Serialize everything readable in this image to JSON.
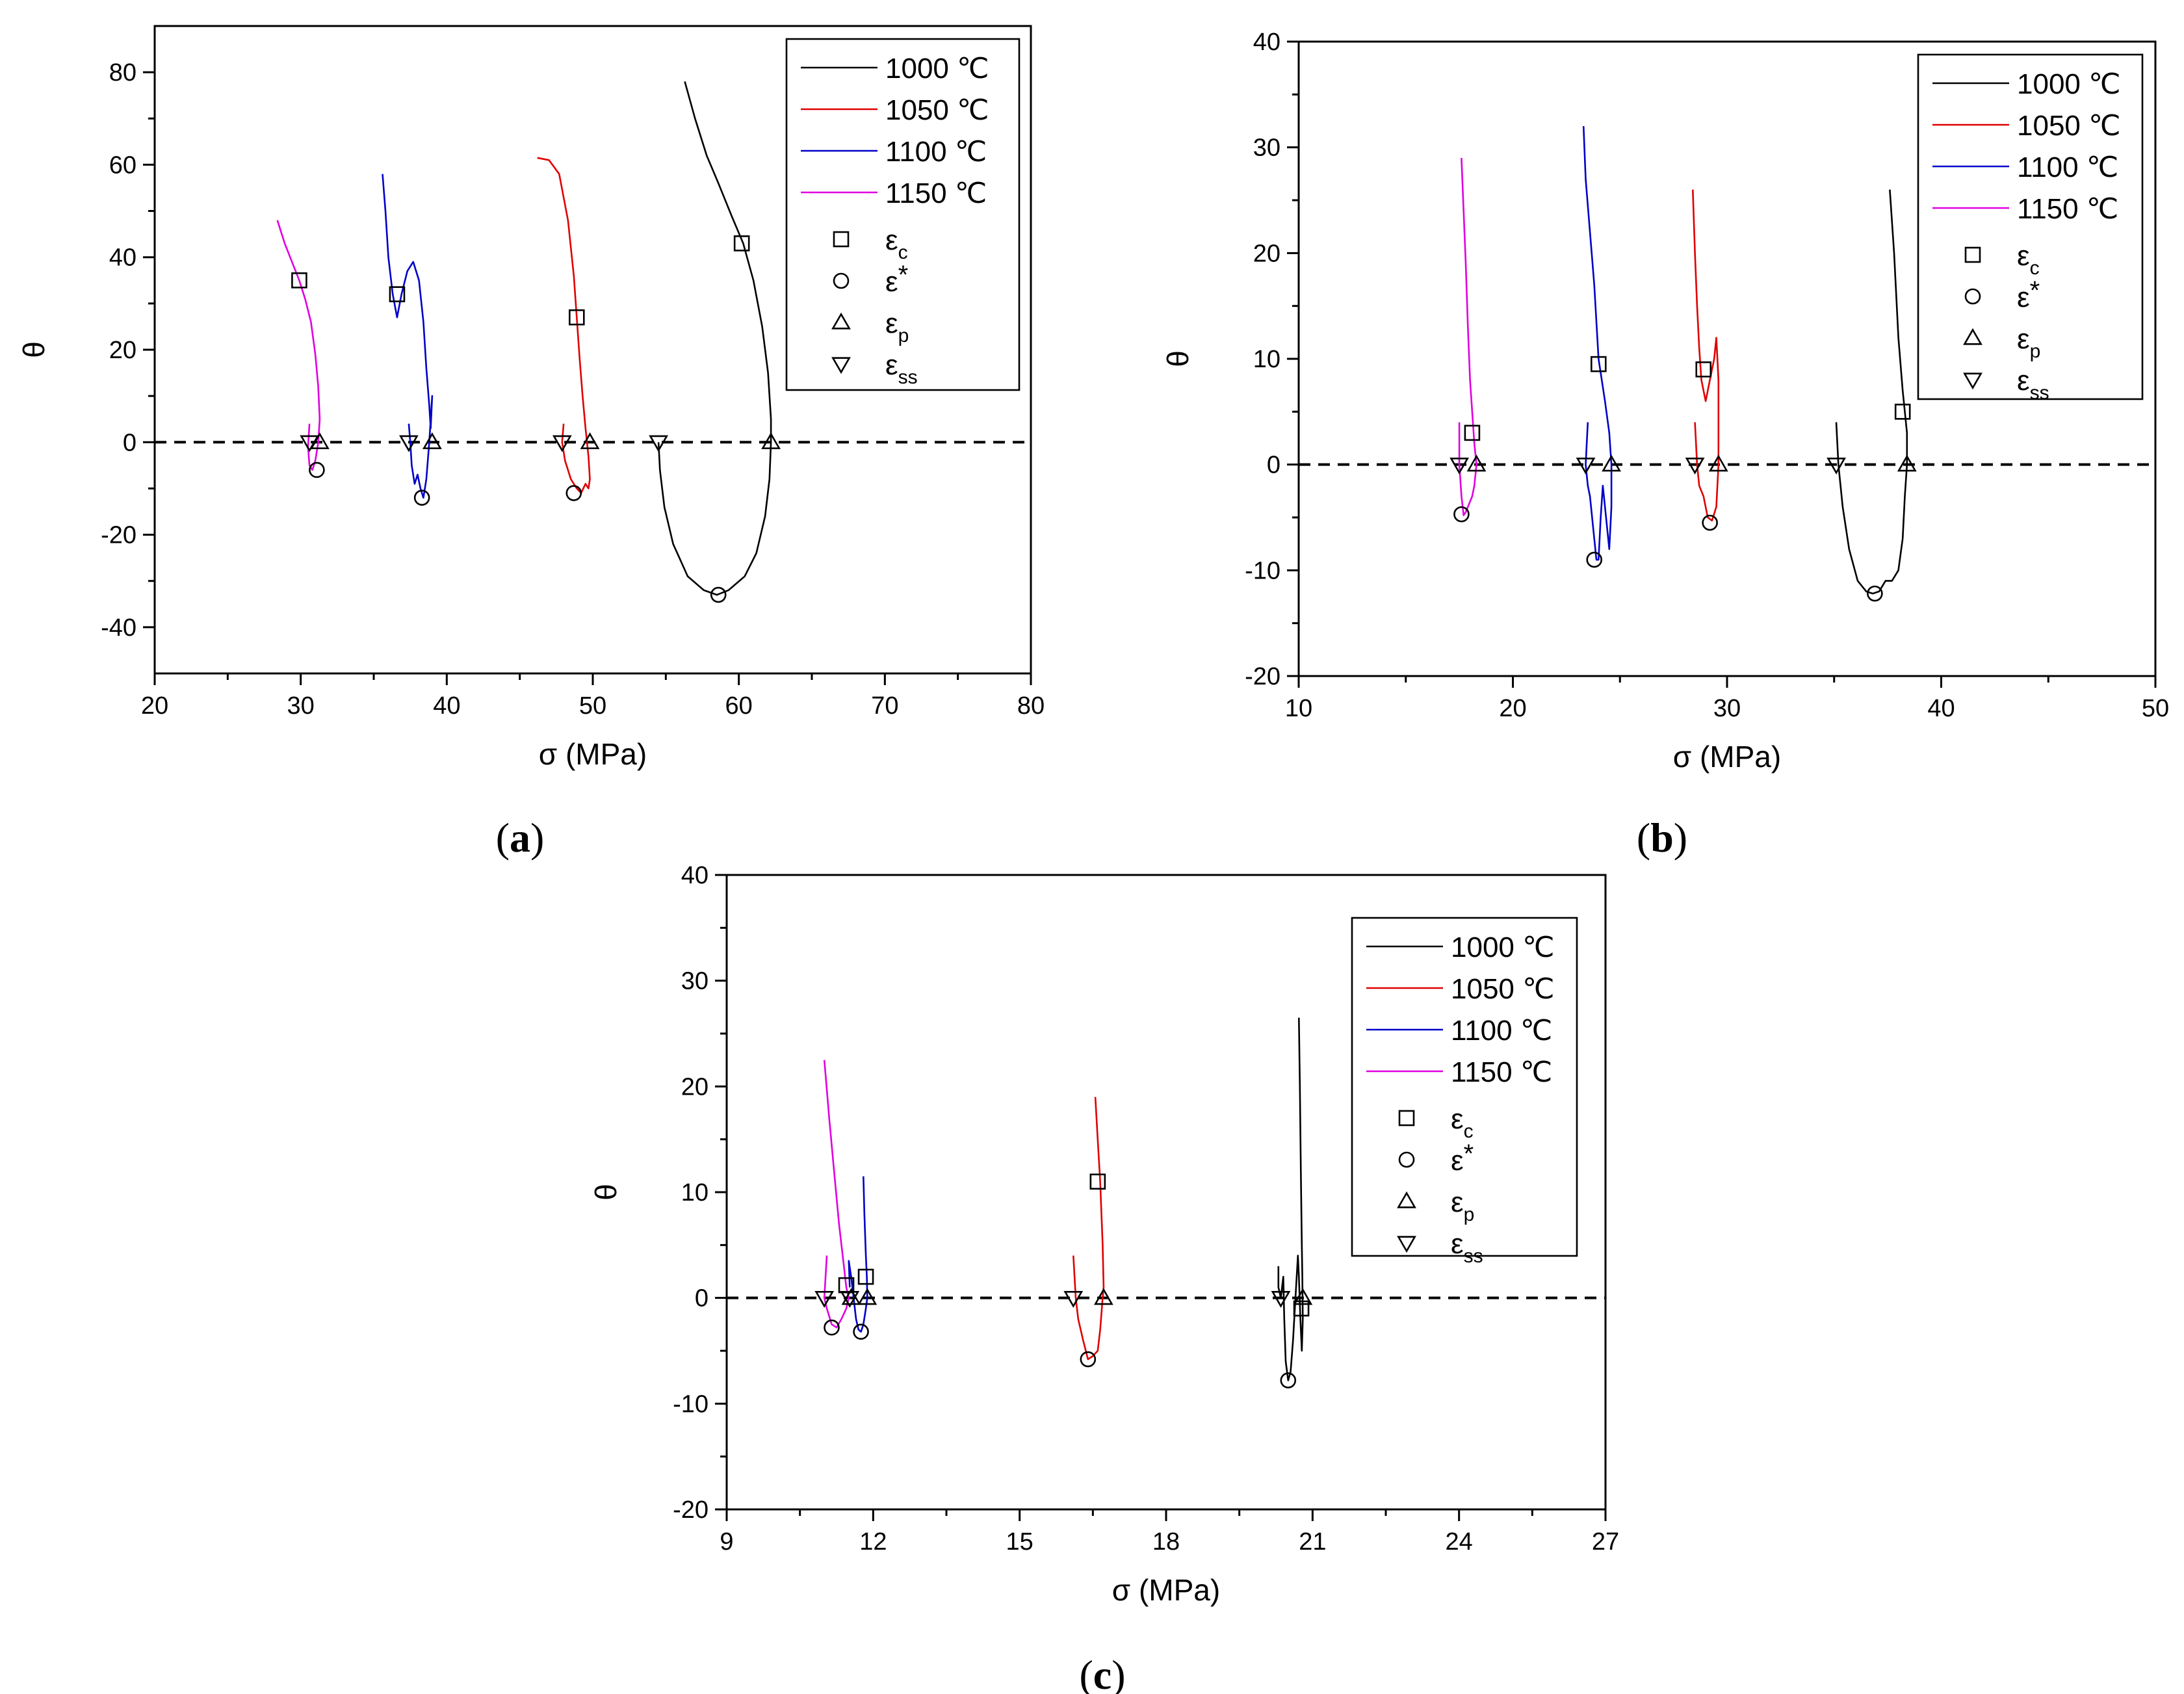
{
  "figure": {
    "legend_series": [
      "1000 ℃",
      "1050 ℃",
      "1100 ℃",
      "1150 ℃"
    ],
    "legend_markers": [
      {
        "symbol": "square",
        "base": "ε",
        "sub": "c",
        "sup": ""
      },
      {
        "symbol": "circle",
        "base": "ε",
        "sub": "",
        "sup": "*"
      },
      {
        "symbol": "triangle-up",
        "base": "ε",
        "sub": "p",
        "sup": ""
      },
      {
        "symbol": "triangle-down",
        "base": "ε",
        "sub": "ss",
        "sup": ""
      }
    ],
    "series_colors": {
      "1000 ℃": "#000000",
      "1050 ℃": "#e00000",
      "1100 ℃": "#0000c8",
      "1150 ℃": "#e000e0"
    }
  },
  "chart_data": [
    {
      "type": "line",
      "panel_label": "(a)",
      "title": "",
      "xlabel": "σ (MPa)",
      "ylabel": "θ",
      "xlim": [
        20,
        80
      ],
      "ylim": [
        -50,
        90
      ],
      "xticks": [
        20,
        30,
        40,
        50,
        60,
        70,
        80
      ],
      "yticks": [
        -40,
        -20,
        0,
        20,
        40,
        60,
        80
      ],
      "legend_position": "top-right",
      "reference_line": {
        "y": 0,
        "style": "dashed"
      },
      "series": [
        {
          "name": "1000 ℃",
          "x": [
            56.3,
            57.0,
            57.8,
            58.6,
            59.5,
            60.3,
            61.0,
            61.6,
            62.0,
            62.2,
            62.2,
            62.1,
            61.8,
            61.2,
            60.4,
            59.3,
            58.5,
            57.6,
            56.5,
            55.5,
            54.9,
            54.6,
            54.5
          ],
          "y": [
            78,
            70,
            62,
            56,
            49,
            43,
            35,
            25,
            15,
            5,
            0,
            -8,
            -16,
            -24,
            -29,
            -32,
            -33,
            -32,
            -29,
            -22,
            -14,
            -6,
            0
          ]
        },
        {
          "name": "1050 ℃",
          "x": [
            46.2,
            47.0,
            47.7,
            48.3,
            48.7,
            48.9,
            49.1,
            49.3,
            49.5,
            49.7,
            49.8,
            49.7,
            49.5,
            49.2,
            48.9,
            48.5,
            48.1,
            47.9,
            48.0
          ],
          "y": [
            61.5,
            61,
            58,
            48,
            36,
            27,
            18,
            10,
            3,
            -3,
            -8,
            -10,
            -9,
            -11,
            -10,
            -8,
            -4,
            0,
            4
          ]
        },
        {
          "name": "1100 ℃",
          "x": [
            35.6,
            35.8,
            36.0,
            36.3,
            36.6,
            36.9,
            37.3,
            37.7,
            38.1,
            38.4,
            38.6,
            38.8,
            38.9,
            39.0,
            38.8,
            38.6,
            38.4,
            38.2,
            38.0,
            37.8,
            37.6,
            37.5,
            37.4
          ],
          "y": [
            58,
            50,
            40,
            32,
            27,
            32,
            37,
            39,
            35,
            26,
            16,
            8,
            3,
            10,
            0,
            -8,
            -12,
            -10,
            -7,
            -9,
            -5,
            0,
            4
          ]
        },
        {
          "name": "1150 ℃",
          "x": [
            28.4,
            28.9,
            29.4,
            29.9,
            30.3,
            30.7,
            31.0,
            31.2,
            31.3,
            31.2,
            31.0,
            30.8,
            30.6,
            30.5,
            30.6
          ],
          "y": [
            48,
            43,
            39,
            35,
            31,
            26,
            19,
            12,
            5,
            0,
            -4,
            -6,
            -5,
            -1,
            4
          ]
        }
      ],
      "markers": {
        "epsilon_c": {
          "x": [
            60.2,
            48.9,
            36.6,
            29.9
          ],
          "y": [
            43,
            27,
            32,
            35
          ]
        },
        "epsilon_star": {
          "x": [
            58.6,
            48.7,
            38.3,
            31.1
          ],
          "y": [
            -33,
            -11,
            -12,
            -6
          ]
        },
        "epsilon_p": {
          "x": [
            62.2,
            49.8,
            39.0,
            31.3
          ],
          "y": [
            0,
            0,
            0,
            0
          ]
        },
        "epsilon_ss": {
          "x": [
            54.5,
            47.9,
            37.4,
            30.6
          ],
          "y": [
            0,
            0,
            0,
            0
          ]
        }
      }
    },
    {
      "type": "line",
      "panel_label": "(b)",
      "title": "",
      "xlabel": "σ (MPa)",
      "ylabel": "θ",
      "xlim": [
        10,
        50
      ],
      "ylim": [
        -20,
        40
      ],
      "xticks": [
        10,
        20,
        30,
        40,
        50
      ],
      "yticks": [
        -20,
        -10,
        0,
        10,
        20,
        30,
        40
      ],
      "legend_position": "top-right",
      "reference_line": {
        "y": 0,
        "style": "dashed"
      },
      "series": [
        {
          "name": "1000 ℃",
          "x": [
            37.6,
            37.8,
            38.0,
            38.2,
            38.3,
            38.4,
            38.4,
            38.3,
            38.2,
            38.0,
            37.7,
            37.4,
            37.1,
            36.8,
            36.5,
            36.1,
            35.7,
            35.4,
            35.2,
            35.1
          ],
          "y": [
            26,
            20,
            12,
            7,
            5,
            3,
            0,
            -3,
            -7,
            -10,
            -11,
            -11,
            -12,
            -12.2,
            -12,
            -11,
            -8,
            -4,
            0,
            4
          ]
        },
        {
          "name": "1050 ℃",
          "x": [
            28.4,
            28.5,
            28.6,
            28.7,
            28.8,
            29.0,
            29.2,
            29.4,
            29.5,
            29.6,
            29.6,
            29.5,
            29.3,
            29.1,
            28.9,
            28.7,
            28.6,
            28.5
          ],
          "y": [
            26,
            20,
            15,
            11,
            8,
            6,
            8,
            10,
            12,
            8,
            0,
            -4,
            -5.3,
            -5,
            -3,
            -2,
            0,
            4
          ]
        },
        {
          "name": "1100 ℃",
          "x": [
            23.3,
            23.4,
            23.6,
            23.8,
            24.0,
            24.3,
            24.5,
            24.6,
            24.6,
            24.5,
            24.4,
            24.2,
            24.1,
            24.0,
            23.9,
            23.8,
            23.6,
            23.5,
            23.4,
            23.5
          ],
          "y": [
            32,
            27,
            22,
            17,
            10,
            6,
            3,
            0,
            -4,
            -8,
            -6,
            -2,
            -5,
            -9,
            -9,
            -7,
            -3,
            -2,
            0,
            4
          ]
        },
        {
          "name": "1150 ℃",
          "x": [
            17.6,
            17.7,
            17.8,
            17.9,
            18.0,
            18.1,
            18.2,
            18.3,
            18.2,
            18.1,
            17.9,
            17.8,
            17.7,
            17.6,
            17.5,
            17.5
          ],
          "y": [
            29,
            24,
            19,
            13,
            8,
            5,
            2,
            0,
            -2,
            -3,
            -4,
            -4.5,
            -4.8,
            -3,
            0,
            4
          ]
        }
      ],
      "markers": {
        "epsilon_c": {
          "x": [
            38.2,
            28.9,
            24.0,
            18.1
          ],
          "y": [
            5,
            9,
            9.5,
            3
          ]
        },
        "epsilon_star": {
          "x": [
            36.9,
            29.2,
            23.8,
            17.6
          ],
          "y": [
            -12.2,
            -5.5,
            -9,
            -4.7
          ]
        },
        "epsilon_p": {
          "x": [
            38.4,
            29.6,
            24.6,
            18.3
          ],
          "y": [
            0,
            0,
            0,
            0
          ]
        },
        "epsilon_ss": {
          "x": [
            35.1,
            28.5,
            23.4,
            17.5
          ],
          "y": [
            0,
            0,
            0,
            0
          ]
        }
      }
    },
    {
      "type": "line",
      "panel_label": "(c)",
      "title": "",
      "xlabel": "σ (MPa)",
      "ylabel": "θ",
      "xlim": [
        9,
        27
      ],
      "ylim": [
        -20,
        40
      ],
      "xticks": [
        9,
        12,
        15,
        18,
        21,
        24,
        27
      ],
      "yticks": [
        -20,
        -10,
        0,
        10,
        20,
        30,
        40
      ],
      "legend_position": "top-right",
      "reference_line": {
        "y": 0,
        "style": "dashed"
      },
      "series": [
        {
          "name": "1000 ℃",
          "x": [
            20.72,
            20.74,
            20.76,
            20.78,
            20.79,
            20.8,
            20.78,
            20.75,
            20.72,
            20.7,
            20.65,
            20.6,
            20.55,
            20.5,
            20.45,
            20.42,
            20.4,
            20.35,
            20.3,
            20.3
          ],
          "y": [
            26.5,
            20,
            12,
            5,
            2,
            -2,
            -5,
            -2,
            2,
            4,
            0,
            -4,
            -7,
            -7.8,
            -6,
            -2,
            2,
            0,
            1,
            3
          ]
        },
        {
          "name": "1050 ℃",
          "x": [
            16.55,
            16.6,
            16.65,
            16.7,
            16.72,
            16.7,
            16.65,
            16.6,
            16.5,
            16.4,
            16.3,
            16.2,
            16.15,
            16.1
          ],
          "y": [
            19,
            15,
            11,
            5,
            1,
            0,
            -3,
            -5,
            -5.5,
            -5.8,
            -4,
            -2,
            0,
            4
          ]
        },
        {
          "name": "1100 ℃",
          "x": [
            11.8,
            11.82,
            11.85,
            11.87,
            11.88,
            11.85,
            11.8,
            11.75,
            11.7,
            11.65,
            11.6,
            11.55,
            11.5,
            11.52
          ],
          "y": [
            11.5,
            8,
            4,
            2,
            0,
            -1,
            -2.5,
            -3.2,
            -3,
            -2,
            0,
            2,
            3.5,
            1
          ]
        },
        {
          "name": "1150 ℃",
          "x": [
            11.0,
            11.1,
            11.2,
            11.3,
            11.4,
            11.45,
            11.5,
            11.45,
            11.35,
            11.25,
            11.15,
            11.05,
            11.0,
            11.05
          ],
          "y": [
            22.5,
            17,
            12,
            7,
            3,
            1,
            0,
            -1,
            -2,
            -2.8,
            -2.5,
            -1,
            0,
            4
          ]
        }
      ],
      "markers": {
        "epsilon_c": {
          "x": [
            20.77,
            16.6,
            11.85,
            11.45
          ],
          "y": [
            -1,
            11,
            2,
            1.2
          ]
        },
        "epsilon_star": {
          "x": [
            20.5,
            16.4,
            11.75,
            11.15
          ],
          "y": [
            -7.8,
            -5.8,
            -3.2,
            -2.8
          ]
        },
        "epsilon_p": {
          "x": [
            20.8,
            16.72,
            11.88,
            11.55
          ],
          "y": [
            0,
            0,
            0,
            0
          ]
        },
        "epsilon_ss": {
          "x": [
            20.35,
            16.1,
            11.52,
            11.0
          ],
          "y": [
            0,
            0,
            0,
            0
          ]
        }
      }
    }
  ]
}
